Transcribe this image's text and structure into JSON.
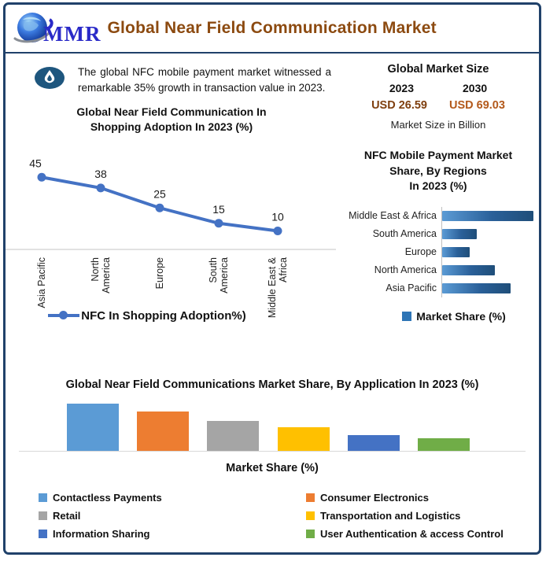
{
  "header": {
    "logo_text": "MMR",
    "title": "Global Near Field Communication Market"
  },
  "callout": {
    "text": "The global NFC mobile payment market witnessed a remarkable 35% growth in transaction value in 2023."
  },
  "market_size": {
    "title": "Global Market Size",
    "year_left": "2023",
    "year_right": "2030",
    "value_left": "USD 26.59",
    "value_right": "USD 69.03",
    "caption": "Market Size in Billion"
  },
  "chart_data": [
    {
      "id": "shopping_adoption",
      "type": "line",
      "title": "Global Near Field Communication In Shopping Adoption In 2023 (%)",
      "title_lines": [
        "Global Near Field Communication In",
        "Shopping Adoption In 2023 (%)"
      ],
      "categories": [
        "Asia Pacific",
        "North America",
        "Europe",
        "South America",
        "Middle East & Africa"
      ],
      "values": [
        45,
        38,
        25,
        15,
        10
      ],
      "legend": "NFC In Shopping Adoption%)",
      "line_color": "#4472C4",
      "ylim": [
        0,
        50
      ],
      "grid": false,
      "legend_position": "bottom"
    },
    {
      "id": "regions_share",
      "type": "bar",
      "orientation": "horizontal",
      "title": "NFC Mobile Payment Market Share, By Regions In 2023 (%)",
      "title_lines": [
        "NFC Mobile Payment Market",
        "Share, By Regions",
        "In 2023 (%)"
      ],
      "categories": [
        "Middle East & Africa",
        "South America",
        "Europe",
        "North America",
        "Asia Pacific"
      ],
      "values": [
        40,
        15,
        12,
        23,
        30
      ],
      "values_note": "estimated from bar lengths; no numeric axis shown",
      "legend": "Market Share (%)",
      "legend_marker_color": "#2E75B6",
      "bar_gradient": [
        "#5B9BD5",
        "#1F4E79"
      ],
      "legend_position": "bottom"
    },
    {
      "id": "application_share",
      "type": "bar",
      "orientation": "vertical",
      "title": "Global Near Field Communications Market Share, By Application In 2023 (%)",
      "categories": [
        "Contactless Payments",
        "Consumer Electronics",
        "Retail",
        "Transportation and Logistics",
        "Information Sharing",
        "User Authentication & access Control"
      ],
      "values": [
        30,
        25,
        19,
        15,
        10,
        8
      ],
      "values_note": "estimated from bar heights; no numeric axis shown",
      "colors": [
        "#5B9BD5",
        "#ED7D31",
        "#A5A5A5",
        "#FFC000",
        "#4472C4",
        "#70AD47"
      ],
      "xlabel": "Market Share (%)",
      "legend_position": "bottom"
    }
  ]
}
